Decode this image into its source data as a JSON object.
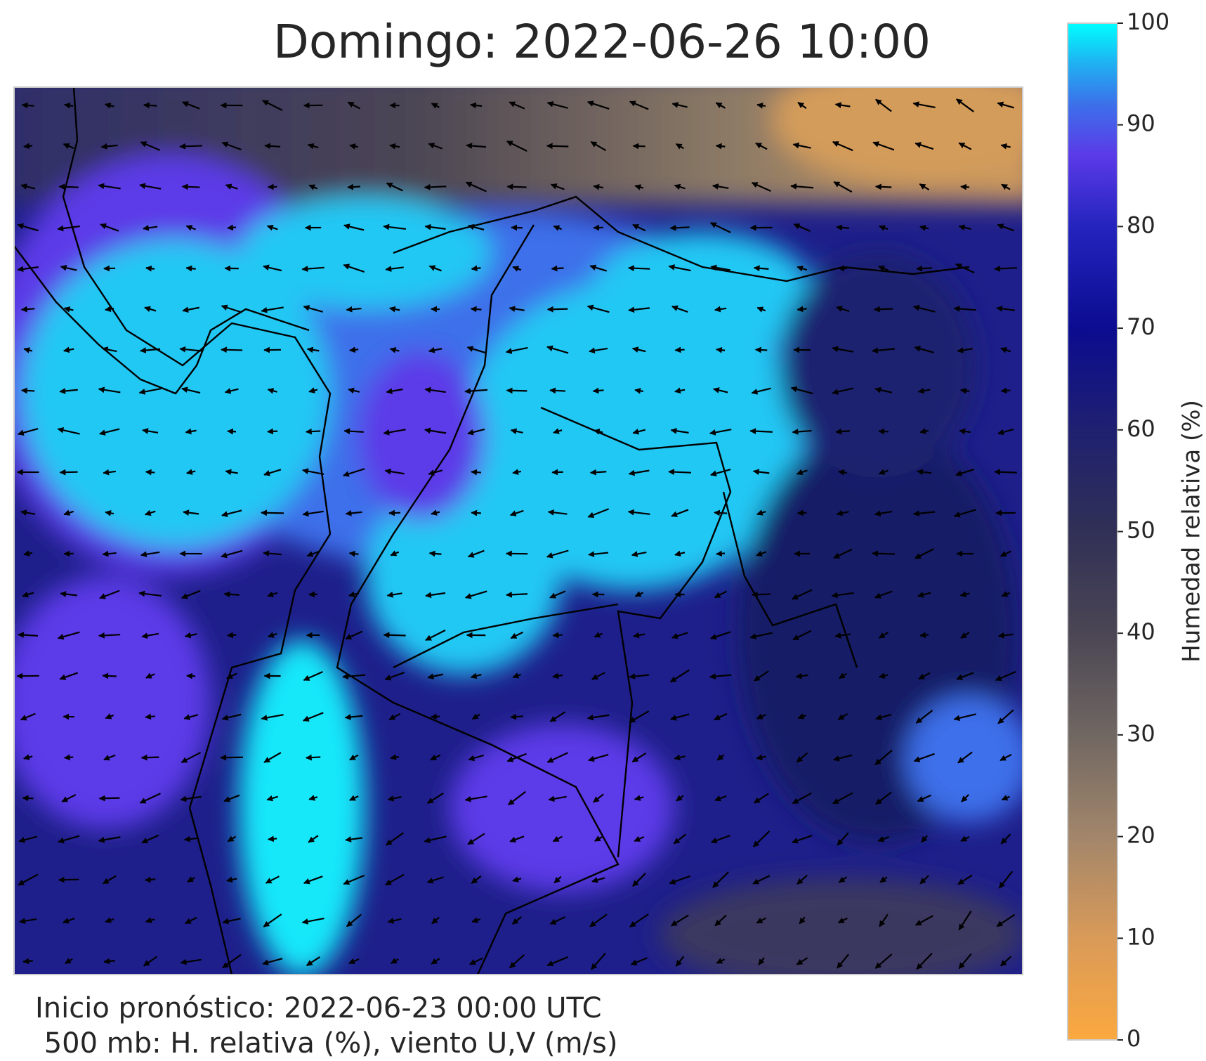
{
  "title": "Domingo: 2022-06-26 10:00",
  "footer": [
    "Inicio pronóstico: 2022-06-23 00:00 UTC",
    " 500 mb: H. relativa (%), viento U,V (m/s)"
  ],
  "colorbar": {
    "label": "Humedad relativa (%)",
    "lim": [
      0,
      100
    ],
    "ticks": [
      0,
      10,
      20,
      30,
      40,
      50,
      60,
      70,
      80,
      90,
      100
    ]
  }
}
